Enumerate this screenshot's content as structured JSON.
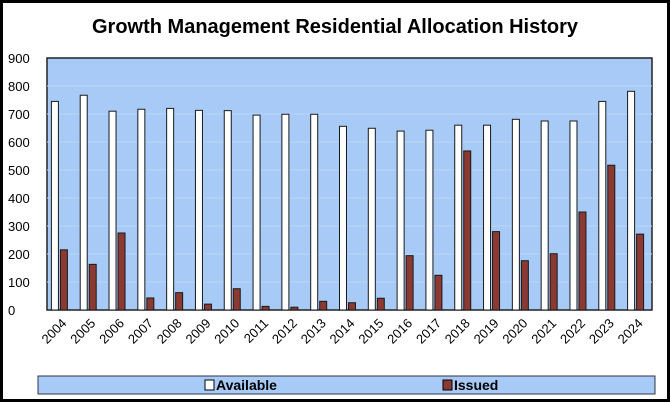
{
  "chart_data": {
    "type": "bar",
    "title": "Growth Management Residential Allocation History",
    "xlabel": "",
    "ylabel": "",
    "ylim": [
      0,
      900
    ],
    "yticks": [
      "0",
      "100",
      "200",
      "300",
      "400",
      "500",
      "600",
      "700",
      "800",
      "900"
    ],
    "grid": true,
    "legend_placement": "bottom",
    "categories": [
      "2004",
      "2005",
      "2006",
      "2007",
      "2008",
      "2009",
      "2010",
      "2011",
      "2012",
      "2013",
      "2014",
      "2015",
      "2016",
      "2017",
      "2018",
      "2019",
      "2020",
      "2021",
      "2022",
      "2023",
      "2024"
    ],
    "series": [
      {
        "name": "Available",
        "color": "#ffffff",
        "values": [
          745,
          767,
          710,
          717,
          720,
          713,
          712,
          696,
          699,
          699,
          656,
          649,
          639,
          642,
          660,
          660,
          681,
          675,
          675,
          745,
          781
        ]
      },
      {
        "name": "Issued",
        "color": "#8b3a33",
        "values": [
          215,
          163,
          275,
          43,
          62,
          21,
          76,
          13,
          10,
          31,
          26,
          42,
          194,
          124,
          568,
          280,
          176,
          201,
          350,
          517,
          271
        ]
      }
    ]
  },
  "colors": {
    "plot_bg": "#a7cbf6",
    "legend_bg": "#a7cbf6"
  }
}
